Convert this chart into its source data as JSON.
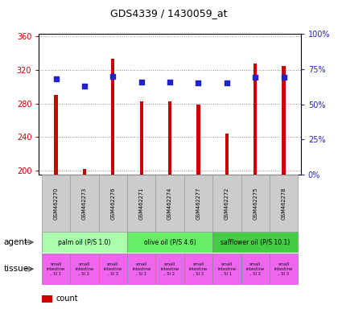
{
  "title": "GDS4339 / 1430059_at",
  "samples": [
    "GSM462270",
    "GSM462273",
    "GSM462276",
    "GSM462271",
    "GSM462274",
    "GSM462277",
    "GSM462272",
    "GSM462275",
    "GSM462278"
  ],
  "counts": [
    290,
    202,
    333,
    282,
    282,
    279,
    244,
    328,
    325
  ],
  "percentiles": [
    68,
    63,
    70,
    66,
    66,
    65,
    65,
    69,
    69
  ],
  "ylim_left": [
    195,
    363
  ],
  "ylim_right": [
    0,
    100
  ],
  "yticks_left": [
    200,
    240,
    280,
    320,
    360
  ],
  "ytick_labels_left": [
    "200",
    "240",
    "280",
    "320",
    "360"
  ],
  "yticks_right": [
    0,
    25,
    50,
    75,
    100
  ],
  "ytick_labels_right": [
    "0%",
    "25%",
    "50%",
    "75%",
    "100%"
  ],
  "bar_color": "#cc0000",
  "dot_color": "#2222cc",
  "agent_groups": [
    {
      "label": "palm oil (P/S 1.0)",
      "start": 0,
      "end": 3,
      "color": "#aaffaa"
    },
    {
      "label": "olive oil (P/S 4.6)",
      "start": 3,
      "end": 6,
      "color": "#66ee66"
    },
    {
      "label": "safflower oil (P/S 10.1)",
      "start": 6,
      "end": 9,
      "color": "#44cc44"
    }
  ],
  "tissue_labels": [
    "small\nintestine\n, SI 1",
    "small\nintestine\n, SI 2",
    "small\nintestine\n, SI 3",
    "small\nintestine\n, SI 1",
    "small\nintestine\n, SI 2",
    "small\nintestine\n, SI 3",
    "small\nintestine\n, SI 1",
    "small\nintestine\n, SI 2",
    "small\nintestine\n, SI 3"
  ],
  "tissue_color": "#ee66ee",
  "sample_box_color": "#cccccc",
  "grid_color": "#888888",
  "bg_color": "#ffffff",
  "left_axis_color": "#cc0000",
  "right_axis_color": "#2222cc",
  "bar_width": 0.12
}
